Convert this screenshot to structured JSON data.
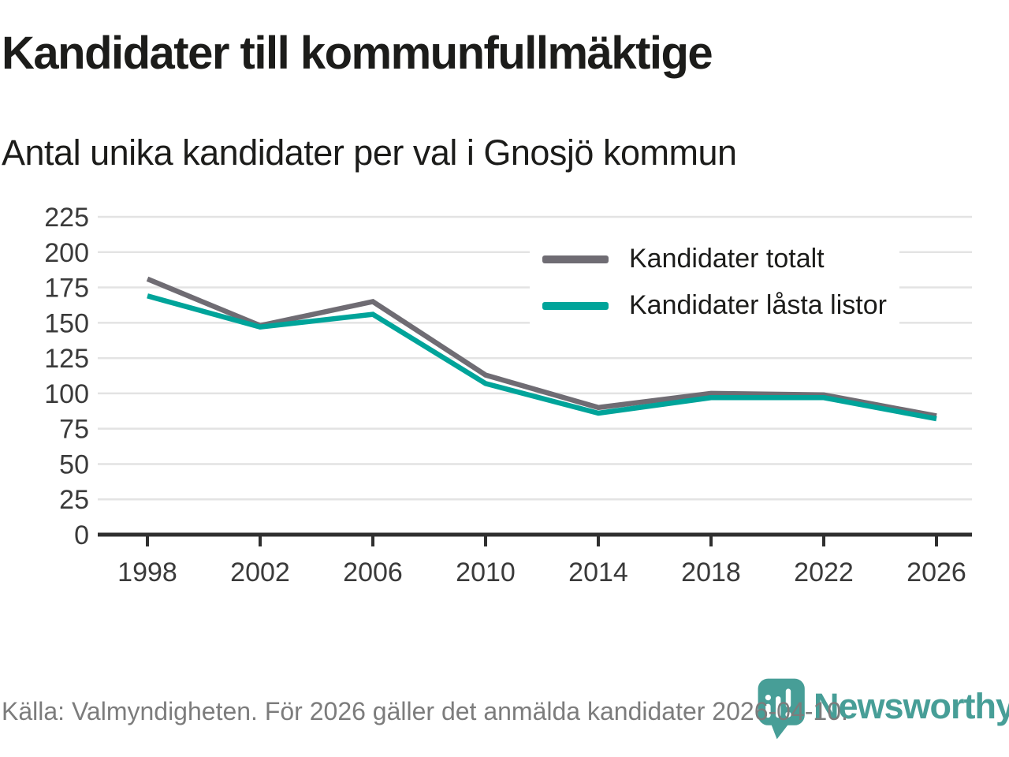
{
  "title": "Kandidater till kommunfullmäktige",
  "subtitle": "Antal unika kandidater per val i Gnosjö kommun",
  "source_note": "Källa: Valmyndigheten. För 2026 gäller det anmälda kandidater 2026-04-10.",
  "logo": {
    "text": "Newsworthy",
    "color": "#479e97"
  },
  "colors": {
    "grid": "#e3e3e3",
    "axis": "#2f2f2f",
    "tick_label": "#3a3a3a",
    "series_total": "#6f6c73",
    "series_locked": "#00a49a"
  },
  "chart_data": {
    "type": "line",
    "title": "Kandidater till kommunfullmäktige",
    "subtitle": "Antal unika kandidater per val i Gnosjö kommun",
    "categories": [
      "1998",
      "2002",
      "2006",
      "2010",
      "2014",
      "2018",
      "2022",
      "2026"
    ],
    "series": [
      {
        "name": "Kandidater totalt",
        "color": "#6f6c73",
        "values": [
          181,
          148,
          165,
          113,
          90,
          100,
          99,
          84
        ]
      },
      {
        "name": "Kandidater låsta listor",
        "color": "#00a49a",
        "values": [
          169,
          147,
          156,
          107,
          86,
          97,
          97,
          82
        ]
      }
    ],
    "ylim": [
      0,
      225
    ],
    "yticks": [
      0,
      25,
      50,
      75,
      100,
      125,
      150,
      175,
      200,
      225
    ],
    "grid": "horizontal",
    "legend_position": "top-right",
    "xlabel": "",
    "ylabel": ""
  }
}
